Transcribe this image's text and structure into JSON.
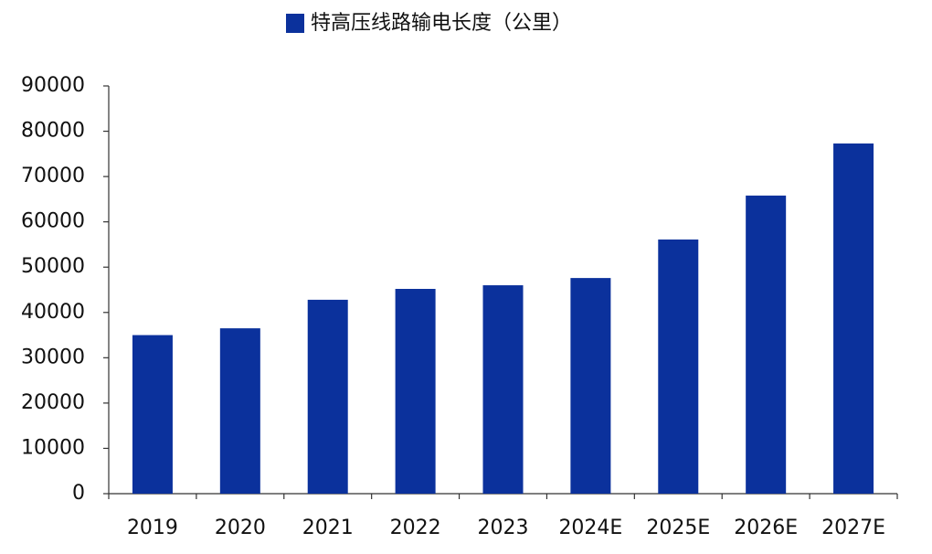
{
  "chart_data": {
    "type": "bar",
    "legend": "特高压线路输电长度（公里）",
    "categories": [
      "2019",
      "2020",
      "2021",
      "2022",
      "2023",
      "2024E",
      "2025E",
      "2026E",
      "2027E"
    ],
    "values": [
      35000,
      36500,
      42800,
      45200,
      46000,
      47600,
      56100,
      65800,
      77300
    ],
    "color": "#0b319c",
    "ylim": [
      0,
      90000
    ],
    "yticks": [
      0,
      10000,
      20000,
      30000,
      40000,
      50000,
      60000,
      70000,
      80000,
      90000
    ],
    "grid": false
  }
}
